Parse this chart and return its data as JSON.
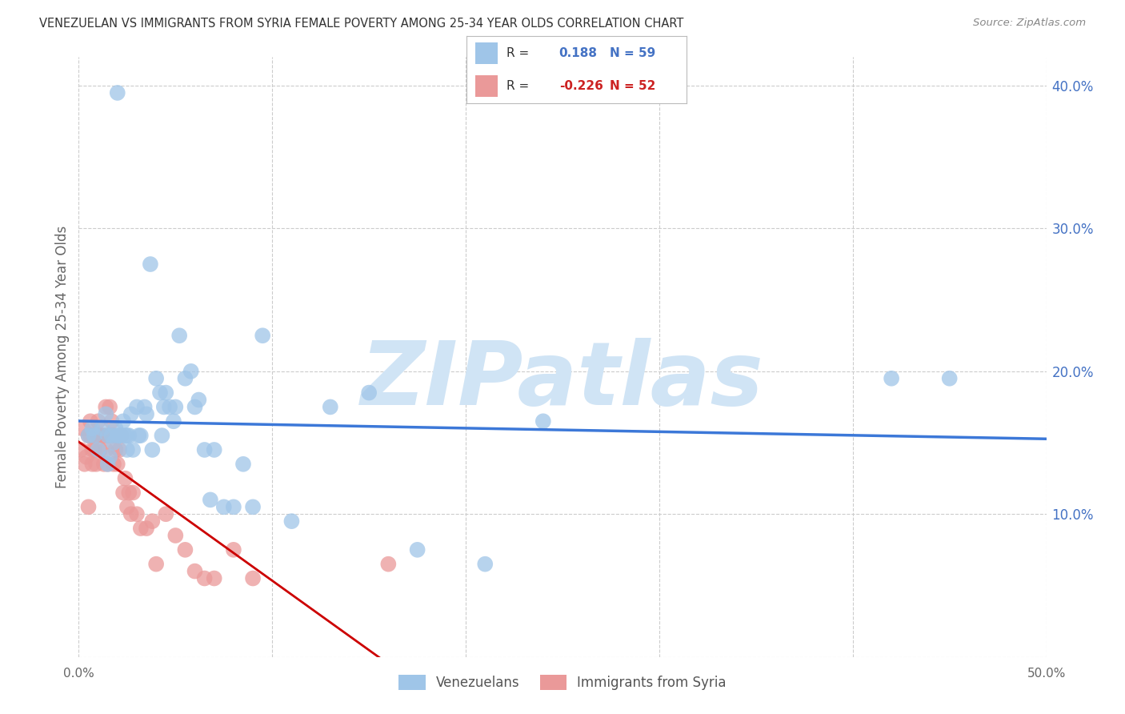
{
  "title": "VENEZUELAN VS IMMIGRANTS FROM SYRIA FEMALE POVERTY AMONG 25-34 YEAR OLDS CORRELATION CHART",
  "source": "Source: ZipAtlas.com",
  "ylabel": "Female Poverty Among 25-34 Year Olds",
  "xlim": [
    0.0,
    0.5
  ],
  "ylim": [
    -0.02,
    0.43
  ],
  "plot_ylim": [
    0.0,
    0.42
  ],
  "yticks_right": [
    0.1,
    0.2,
    0.3,
    0.4
  ],
  "ytick_labels_right": [
    "10.0%",
    "20.0%",
    "30.0%",
    "40.0%"
  ],
  "R_blue": 0.188,
  "N_blue": 59,
  "R_pink": -0.226,
  "N_pink": 52,
  "blue_color": "#9fc5e8",
  "pink_color": "#ea9999",
  "trend_blue": "#3c78d8",
  "trend_pink": "#cc0000",
  "watermark": "ZIPatlas",
  "watermark_color": "#d0e4f5",
  "legend_label_blue": "Venezuelans",
  "legend_label_pink": "Immigrants from Syria",
  "background_color": "#ffffff",
  "grid_color": "#cccccc",
  "venezuelan_x": [
    0.005,
    0.007,
    0.008,
    0.01,
    0.012,
    0.014,
    0.015,
    0.015,
    0.016,
    0.017,
    0.018,
    0.019,
    0.02,
    0.021,
    0.022,
    0.023,
    0.024,
    0.025,
    0.025,
    0.026,
    0.027,
    0.028,
    0.03,
    0.031,
    0.032,
    0.034,
    0.035,
    0.037,
    0.038,
    0.04,
    0.042,
    0.043,
    0.044,
    0.045,
    0.047,
    0.049,
    0.05,
    0.052,
    0.055,
    0.058,
    0.06,
    0.062,
    0.065,
    0.068,
    0.07,
    0.075,
    0.08,
    0.085,
    0.09,
    0.095,
    0.11,
    0.13,
    0.15,
    0.175,
    0.21,
    0.24,
    0.42,
    0.45,
    0.02
  ],
  "venezuelan_y": [
    0.155,
    0.16,
    0.155,
    0.145,
    0.16,
    0.17,
    0.155,
    0.135,
    0.14,
    0.155,
    0.15,
    0.16,
    0.155,
    0.155,
    0.155,
    0.165,
    0.155,
    0.155,
    0.145,
    0.155,
    0.17,
    0.145,
    0.175,
    0.155,
    0.155,
    0.175,
    0.17,
    0.275,
    0.145,
    0.195,
    0.185,
    0.155,
    0.175,
    0.185,
    0.175,
    0.165,
    0.175,
    0.225,
    0.195,
    0.2,
    0.175,
    0.18,
    0.145,
    0.11,
    0.145,
    0.105,
    0.105,
    0.135,
    0.105,
    0.225,
    0.095,
    0.175,
    0.185,
    0.075,
    0.065,
    0.165,
    0.195,
    0.195,
    0.395
  ],
  "syria_x": [
    0.001,
    0.002,
    0.003,
    0.004,
    0.005,
    0.005,
    0.006,
    0.006,
    0.007,
    0.007,
    0.008,
    0.008,
    0.009,
    0.01,
    0.01,
    0.011,
    0.012,
    0.013,
    0.013,
    0.014,
    0.014,
    0.015,
    0.015,
    0.016,
    0.016,
    0.017,
    0.018,
    0.018,
    0.019,
    0.02,
    0.021,
    0.022,
    0.023,
    0.024,
    0.025,
    0.026,
    0.027,
    0.028,
    0.03,
    0.032,
    0.035,
    0.038,
    0.04,
    0.045,
    0.05,
    0.055,
    0.06,
    0.065,
    0.07,
    0.08,
    0.09,
    0.16
  ],
  "syria_y": [
    0.145,
    0.16,
    0.135,
    0.14,
    0.105,
    0.155,
    0.165,
    0.155,
    0.135,
    0.145,
    0.145,
    0.155,
    0.135,
    0.155,
    0.165,
    0.145,
    0.155,
    0.135,
    0.155,
    0.145,
    0.175,
    0.155,
    0.135,
    0.175,
    0.155,
    0.165,
    0.135,
    0.155,
    0.145,
    0.135,
    0.145,
    0.155,
    0.115,
    0.125,
    0.105,
    0.115,
    0.1,
    0.115,
    0.1,
    0.09,
    0.09,
    0.095,
    0.065,
    0.1,
    0.085,
    0.075,
    0.06,
    0.055,
    0.055,
    0.075,
    0.055,
    0.065
  ]
}
